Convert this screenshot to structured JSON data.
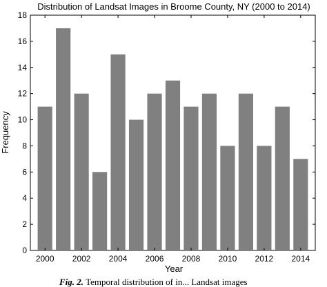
{
  "chart_data": {
    "type": "bar",
    "title": "Distribution of Landsat Images in Broome County, NY (2000 to 2014)",
    "xlabel": "Year",
    "ylabel": "Frequency",
    "categories": [
      "2000",
      "2001",
      "2002",
      "2003",
      "2004",
      "2005",
      "2006",
      "2007",
      "2008",
      "2009",
      "2010",
      "2011",
      "2012",
      "2013",
      "2014"
    ],
    "values": [
      11,
      17,
      12,
      6,
      15,
      10,
      12,
      13,
      11,
      12,
      8,
      12,
      8,
      11,
      7
    ],
    "x_tick_labels": [
      "2000",
      "2002",
      "2004",
      "2006",
      "2008",
      "2010",
      "2012",
      "2014"
    ],
    "y_tick_labels": [
      "0",
      "2",
      "4",
      "6",
      "8",
      "10",
      "12",
      "14",
      "16",
      "18"
    ],
    "ylim": [
      0,
      18
    ],
    "grid": false,
    "bar_color": "#808080"
  },
  "caption": {
    "label": "Fig. 2.",
    "text": "Temporal distribution of in... Landsat images"
  }
}
